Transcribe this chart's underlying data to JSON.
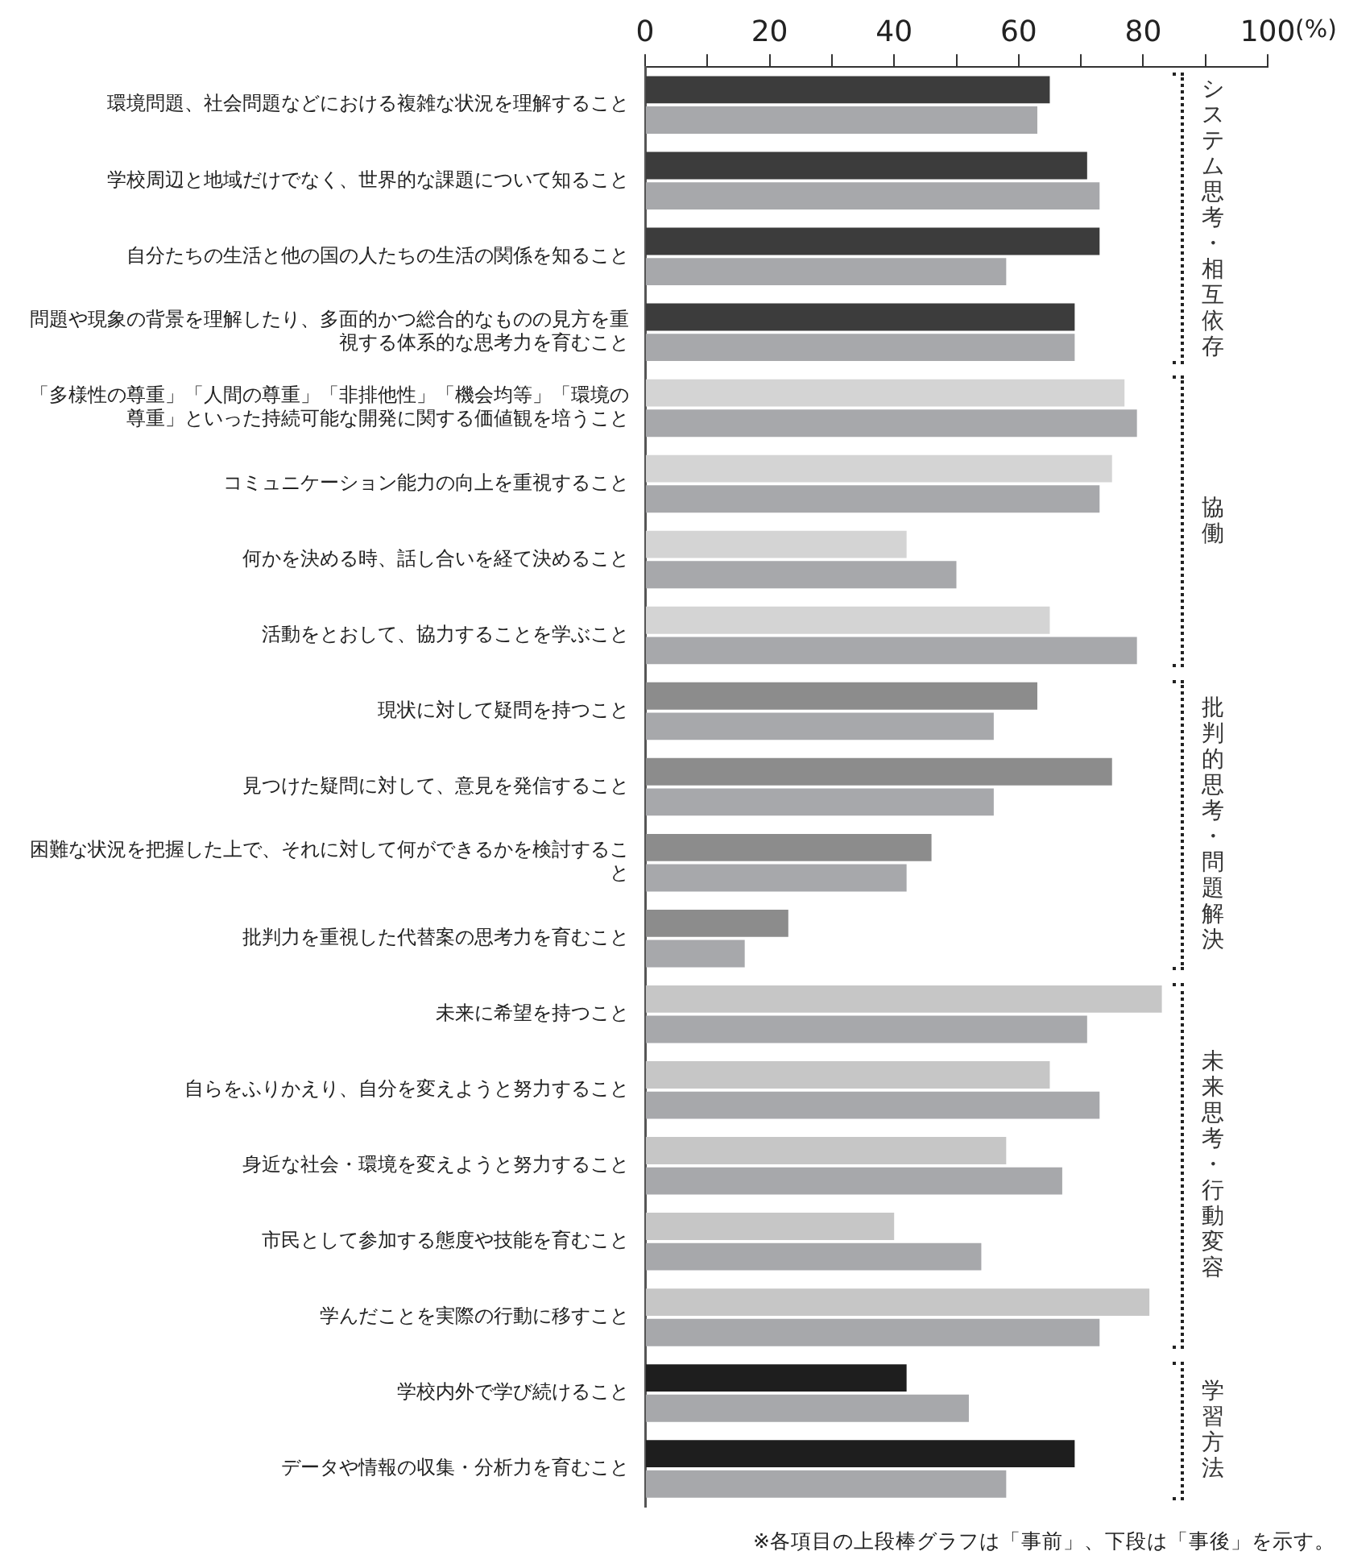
{
  "chart_data": {
    "type": "bar",
    "orientation": "horizontal",
    "xlabel": "(%)",
    "categories": [
      "環境問題、社会問題などにおける複雑な状況を理解すること",
      "学校周辺と地域だけでなく、世界的な課題について知ること",
      "自分たちの生活と他の国の人たちの生活の関係を知ること",
      "問題や現象の背景を理解したり、多面的かつ総合的なものの見方を重視する体系的な思考力を育むこと",
      "「多様性の尊重」「人間の尊重」「非排他性」「機会均等」「環境の尊重」といった持続可能な開発に関する価値観を培うこと",
      "コミュニケーション能力の向上を重視すること",
      "何かを決める時、話し合いを経て決めること",
      "活動をとおして、協力することを学ぶこと",
      "現状に対して疑問を持つこと",
      "見つけた疑問に対して、意見を発信すること",
      "困難な状況を把握した上で、それに対して何ができるかを検討すること",
      "批判力を重視した代替案の思考力を育むこと",
      "未来に希望を持つこと",
      "自らをふりかえり、自分を変えようと努力すること",
      "身近な社会・環境を変えようと努力すること",
      "市民として参加する態度や技能を育むこと",
      "学んだことを実際の行動に移すこと",
      "学校内外で学び続けること",
      "データや情報の収集・分析力を育むこと"
    ],
    "series": [
      {
        "colors": [
          "#3c3c3c",
          "#3c3c3c",
          "#3c3c3c",
          "#3c3c3c",
          "#d4d4d4",
          "#d4d4d4",
          "#d4d4d4",
          "#d4d4d4",
          "#8c8c8c",
          "#8c8c8c",
          "#8c8c8c",
          "#8c8c8c",
          "#c6c6c6",
          "#c6c6c6",
          "#c6c6c6",
          "#c6c6c6",
          "#c6c6c6",
          "#1e1e1e",
          "#1e1e1e"
        ],
        "values": [
          65,
          71,
          73,
          69,
          77,
          75,
          42,
          65,
          63,
          75,
          46,
          23,
          83,
          65,
          58,
          40,
          81,
          42,
          69
        ]
      },
      {
        "color": "#a7a8ab",
        "values": [
          63,
          73,
          58,
          69,
          79,
          73,
          50,
          79,
          56,
          56,
          42,
          16,
          71,
          73,
          67,
          54,
          73,
          52,
          58
        ]
      }
    ],
    "xlim": [
      0,
      100
    ],
    "xticks": [
      0,
      {
        "value": 10,
        "label": null
      },
      20,
      {
        "value": 30,
        "label": null
      },
      40,
      {
        "value": 50,
        "label": null
      },
      60,
      {
        "value": 70,
        "label": null
      },
      80,
      {
        "value": 90,
        "label": null
      },
      100
    ],
    "grid": false,
    "legend": false,
    "annotations": [
      "システム思考・相互依存",
      "協働",
      "批判的思考・問題解決",
      "未来思考・行動変容",
      "学習方法",
      "※各項目の上段棒グラフは「事前」、下段は「事後」を示す。"
    ]
  }
}
